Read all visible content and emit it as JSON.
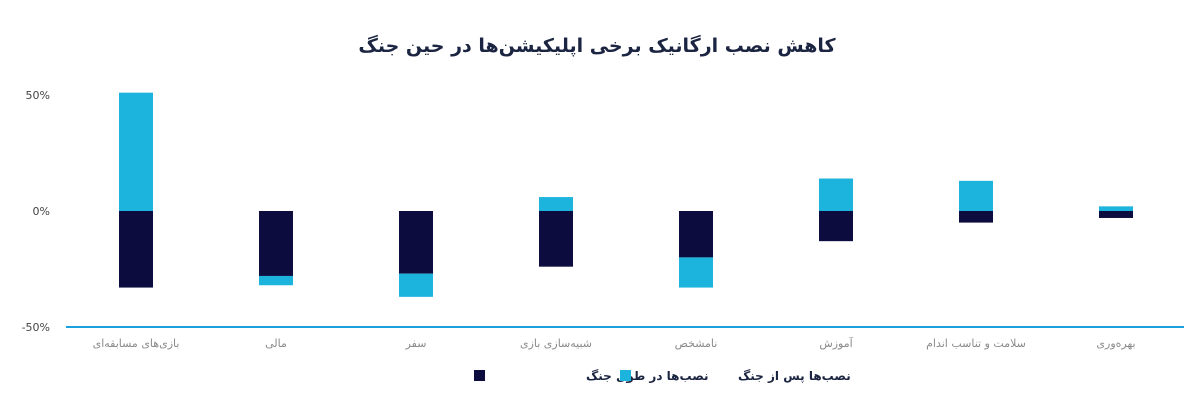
{
  "chart_data": {
    "type": "bar",
    "stacked": true,
    "title": "کاهش نصب ارگانیک برخی اپلیکیشن‌ها در حین جنگ",
    "categories": [
      "بازی‌های مسابقه‌ای",
      "مالی",
      "سفر",
      "شبیه‌سازی بازی",
      "نامشخص",
      "آموزش",
      "سلامت و تناسب اندام",
      "بهره‌وری"
    ],
    "series": [
      {
        "name": "نصب‌ها در طول جنگ",
        "color": "#0c0c3e",
        "values": [
          -33,
          -28,
          -27,
          -24,
          -20,
          -13,
          -5,
          -3
        ]
      },
      {
        "name": "نصب‌ها پس از جنگ",
        "color": "#1cb3dd",
        "values": [
          51,
          -4,
          -10,
          6,
          -13,
          14,
          13,
          2
        ]
      }
    ],
    "yticks": [
      {
        "value": 50,
        "label": "50%"
      },
      {
        "value": 0,
        "label": "0%"
      },
      {
        "value": -50,
        "label": "-50%"
      }
    ],
    "ylim": [
      -50,
      50
    ],
    "grid": false,
    "legend_position": "bottom-center",
    "axis_color": "#1aa0dc"
  }
}
